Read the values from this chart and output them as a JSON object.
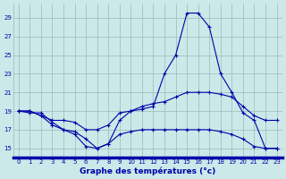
{
  "title": "Graphe des températures (°c)",
  "bg_color": "#cce8e8",
  "grid_color": "#99bbbb",
  "line_color": "#0000aa",
  "xlim": [
    -0.5,
    23.5
  ],
  "ylim": [
    14.0,
    30.5
  ],
  "yticks": [
    15,
    17,
    19,
    21,
    23,
    25,
    27,
    29
  ],
  "xticks": [
    0,
    1,
    2,
    3,
    4,
    5,
    6,
    7,
    8,
    9,
    10,
    11,
    12,
    13,
    14,
    15,
    16,
    17,
    18,
    19,
    20,
    21,
    22,
    23
  ],
  "line1_x": [
    0,
    1,
    2,
    3,
    4,
    5,
    6,
    7,
    8,
    9,
    10,
    11,
    12,
    13,
    14,
    15,
    16,
    17,
    18,
    19,
    20,
    21,
    22,
    23
  ],
  "line1_y": [
    19.0,
    18.8,
    18.8,
    17.8,
    17.0,
    16.5,
    15.2,
    15.0,
    15.5,
    18.0,
    19.0,
    19.2,
    19.5,
    23.0,
    25.0,
    29.5,
    29.5,
    28.0,
    23.0,
    21.0,
    18.8,
    18.0,
    15.0,
    15.0
  ],
  "line2_x": [
    0,
    1,
    2,
    3,
    4,
    5,
    6,
    7,
    8,
    9,
    10,
    11,
    12,
    13,
    14,
    15,
    16,
    17,
    18,
    19,
    20,
    21,
    22,
    23
  ],
  "line2_y": [
    19.0,
    19.0,
    18.5,
    18.0,
    18.0,
    17.8,
    17.0,
    17.0,
    17.5,
    18.8,
    19.0,
    19.5,
    19.8,
    20.0,
    20.5,
    21.0,
    21.0,
    21.0,
    20.8,
    20.5,
    19.5,
    18.5,
    18.0,
    18.0
  ],
  "line3_x": [
    0,
    1,
    2,
    3,
    4,
    5,
    6,
    7,
    8,
    9,
    10,
    11,
    12,
    13,
    14,
    15,
    16,
    17,
    18,
    19,
    20,
    21,
    22,
    23
  ],
  "line3_y": [
    19.0,
    19.0,
    18.5,
    17.5,
    17.0,
    16.8,
    16.0,
    15.0,
    15.5,
    16.5,
    16.8,
    17.0,
    17.0,
    17.0,
    17.0,
    17.0,
    17.0,
    17.0,
    16.8,
    16.5,
    16.0,
    15.2,
    15.0,
    15.0
  ]
}
